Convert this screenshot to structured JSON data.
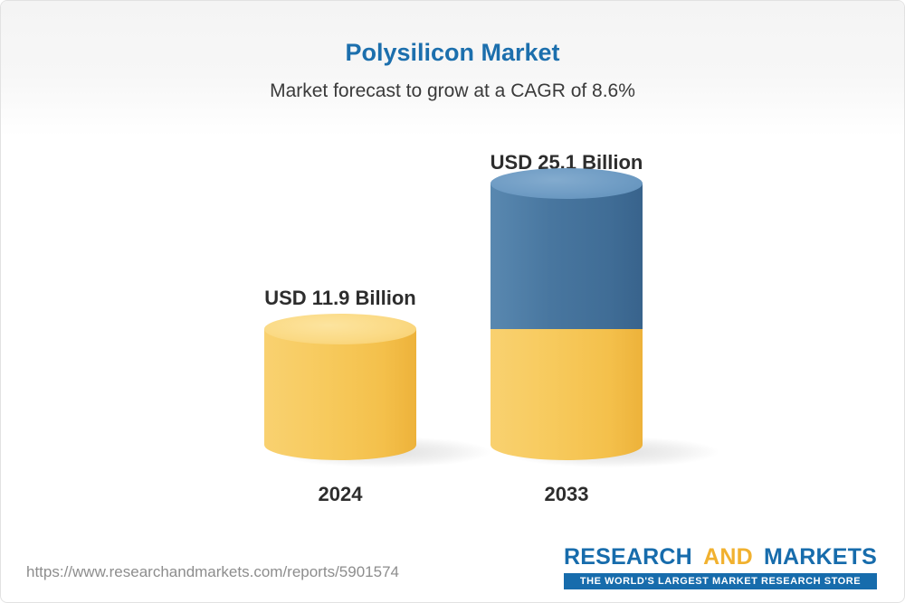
{
  "header": {
    "title": "Polysilicon Market",
    "subtitle": "Market forecast to grow at a CAGR of 8.6%"
  },
  "chart_data": {
    "type": "bar",
    "bar_style": "3d-cylinder",
    "categories": [
      "2024",
      "2033"
    ],
    "values": [
      11.9,
      25.1
    ],
    "value_labels": [
      "USD 11.9 Billion",
      "USD 25.1 Billion"
    ],
    "unit": "USD Billion",
    "cagr_pct": 8.6,
    "title": "Polysilicon Market",
    "subtitle": "Market forecast to grow at a CAGR of 8.6%",
    "legend": "none",
    "grid": false,
    "colors": {
      "base_segment": "#f7ca5d",
      "growth_segment": "#48769f"
    },
    "segments": [
      {
        "category": "2024",
        "parts": [
          {
            "value": 11.9,
            "color": "#f7ca5d"
          }
        ]
      },
      {
        "category": "2033",
        "parts": [
          {
            "value": 11.9,
            "color": "#f7ca5d"
          },
          {
            "value": 13.2,
            "color": "#48769f"
          }
        ]
      }
    ]
  },
  "footer": {
    "url": "https://www.researchandmarkets.com/reports/5901574",
    "logo": {
      "research": "RESEARCH",
      "and": "AND",
      "markets": "MARKETS",
      "tagline": "THE WORLD'S LARGEST MARKET RESEARCH STORE"
    }
  }
}
